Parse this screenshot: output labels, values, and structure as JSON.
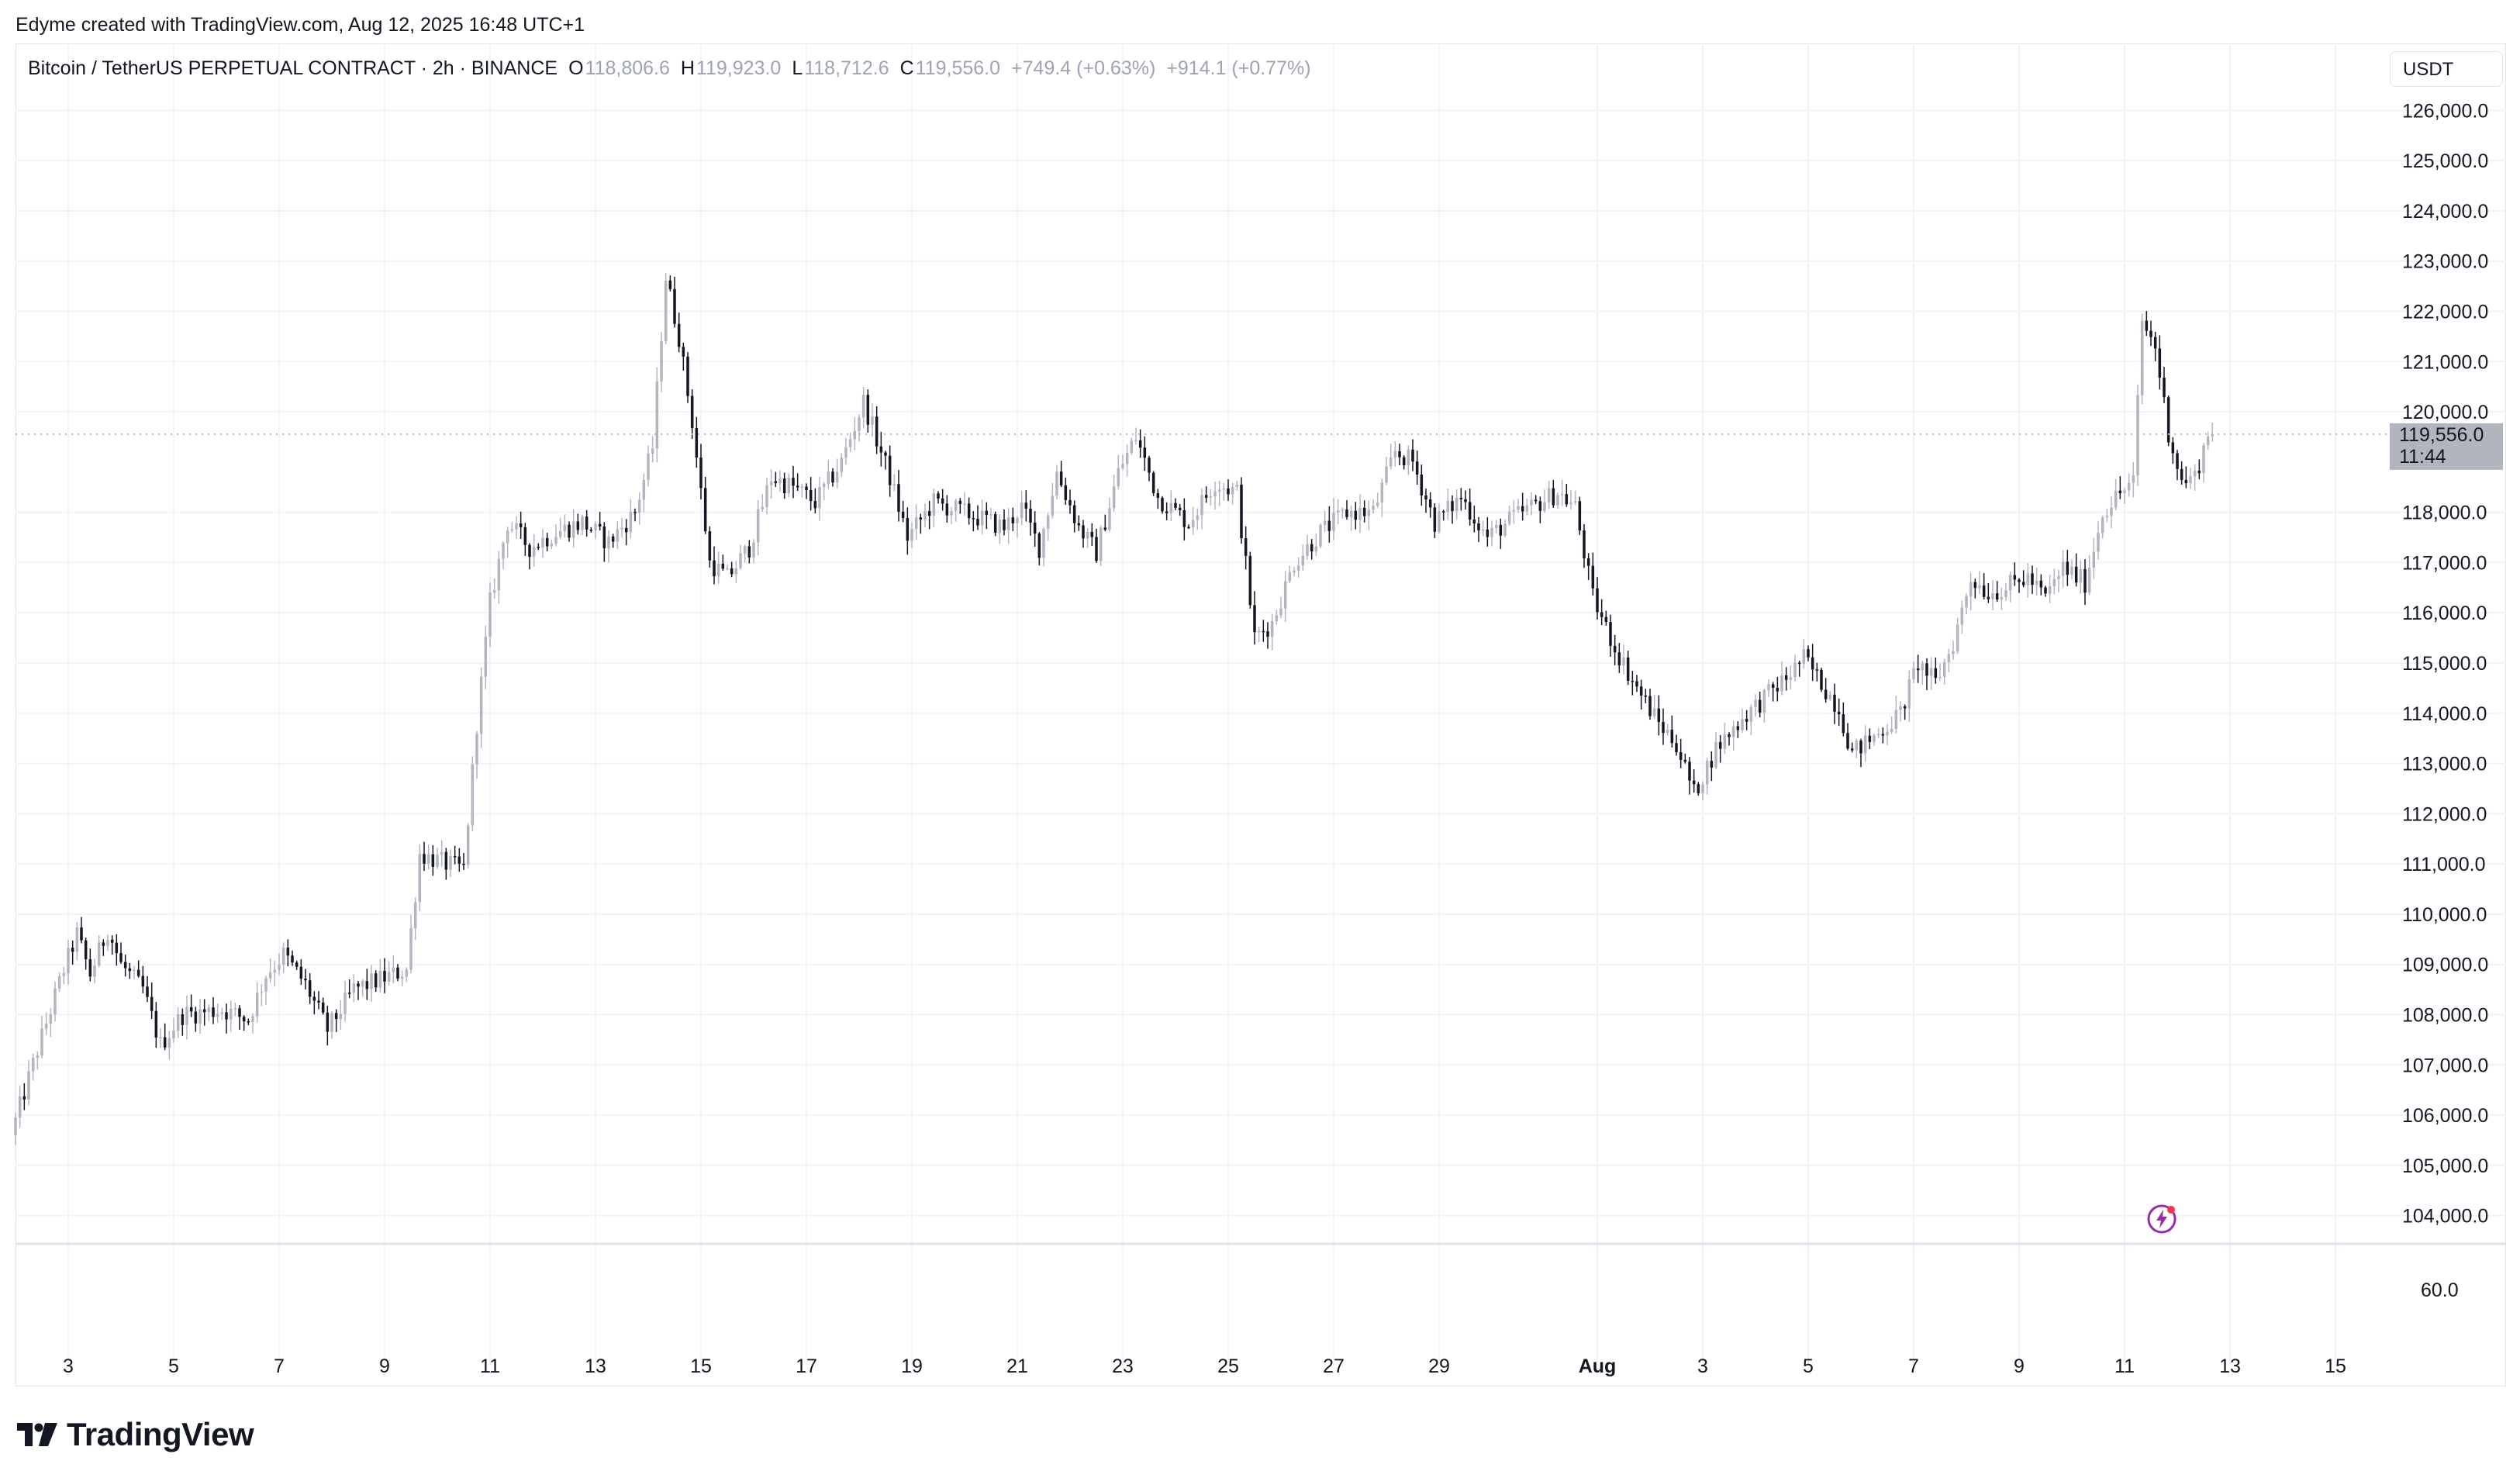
{
  "header": {
    "creator_text": "Edyme created with TradingView.com, Aug 12, 2025 16:48 UTC+1"
  },
  "legend": {
    "symbol": "Bitcoin / TetherUS PERPETUAL CONTRACT · 2h · BINANCE",
    "open_key": "O",
    "open": "118,806.6",
    "high_key": "H",
    "high": "119,923.0",
    "low_key": "L",
    "low": "118,712.6",
    "close_key": "C",
    "close": "119,556.0",
    "change": "+749.4 (+0.63%)",
    "change2": "+914.1 (+0.77%)"
  },
  "currency_button": "USDT",
  "price_tag": {
    "price": "119,556.0",
    "countdown": "11:44"
  },
  "logo_text": "TradingView",
  "colors": {
    "up": "#b2b5be",
    "down": "#131722",
    "grid": "#f0f3fa",
    "tag_bg": "#b2b5be",
    "bolt": "#9c27b0"
  },
  "icons": {
    "logo": "tradingview-logo-icon",
    "alert": "lightning-alert-icon"
  },
  "chart_data": {
    "type": "candlestick",
    "interval": "2h",
    "y_ticks": [
      "126,000.0",
      "125,000.0",
      "124,000.0",
      "123,000.0",
      "122,000.0",
      "121,000.0",
      "120,000.0",
      "118,000.0",
      "117,000.0",
      "116,000.0",
      "115,000.0",
      "114,000.0",
      "113,000.0",
      "112,000.0",
      "111,000.0",
      "110,000.0",
      "109,000.0",
      "108,000.0",
      "107,000.0",
      "106,000.0",
      "105,000.0",
      "104,000.0"
    ],
    "y_range": [
      103500,
      126500
    ],
    "lower_pane_tick": "60.0",
    "x_ticks": [
      "3",
      "5",
      "7",
      "9",
      "11",
      "13",
      "15",
      "17",
      "19",
      "21",
      "23",
      "25",
      "27",
      "29",
      "Aug",
      "3",
      "5",
      "7",
      "9",
      "11",
      "13",
      "15"
    ],
    "x_range": [
      "2025-07-02",
      "2025-08-16"
    ],
    "current_price": 119556,
    "anchors": [
      [
        "2025-07-02T00:00",
        105600
      ],
      [
        "2025-07-02T12:00",
        107300
      ],
      [
        "2025-07-03T00:00",
        108900
      ],
      [
        "2025-07-03T06:00",
        109600
      ],
      [
        "2025-07-03T12:00",
        108800
      ],
      [
        "2025-07-03T20:00",
        109700
      ],
      [
        "2025-07-04T02:00",
        109000
      ],
      [
        "2025-07-04T12:00",
        108500
      ],
      [
        "2025-07-04T20:00",
        107400
      ],
      [
        "2025-07-05T06:00",
        108000
      ],
      [
        "2025-07-06T00:00",
        108100
      ],
      [
        "2025-07-06T12:00",
        107900
      ],
      [
        "2025-07-06T20:00",
        108800
      ],
      [
        "2025-07-07T04:00",
        109200
      ],
      [
        "2025-07-07T14:00",
        108600
      ],
      [
        "2025-07-08T00:00",
        107700
      ],
      [
        "2025-07-08T12:00",
        108500
      ],
      [
        "2025-07-09T00:00",
        108700
      ],
      [
        "2025-07-09T12:00",
        108900
      ],
      [
        "2025-07-09T18:00",
        111200
      ],
      [
        "2025-07-10T06:00",
        111000
      ],
      [
        "2025-07-10T14:00",
        110900
      ],
      [
        "2025-07-10T20:00",
        113800
      ],
      [
        "2025-07-11T02:00",
        116200
      ],
      [
        "2025-07-11T10:00",
        117800
      ],
      [
        "2025-07-11T20:00",
        117300
      ],
      [
        "2025-07-12T08:00",
        117600
      ],
      [
        "2025-07-12T20:00",
        117800
      ],
      [
        "2025-07-13T08:00",
        117400
      ],
      [
        "2025-07-13T20:00",
        118000
      ],
      [
        "2025-07-14T04:00",
        119300
      ],
      [
        "2025-07-14T10:00",
        122700
      ],
      [
        "2025-07-14T16:00",
        121500
      ],
      [
        "2025-07-14T22:00",
        119800
      ],
      [
        "2025-07-15T06:00",
        117000
      ],
      [
        "2025-07-15T14:00",
        116700
      ],
      [
        "2025-07-16T00:00",
        117300
      ],
      [
        "2025-07-16T10:00",
        118700
      ],
      [
        "2025-07-16T20:00",
        118500
      ],
      [
        "2025-07-17T06:00",
        118200
      ],
      [
        "2025-07-17T18:00",
        119000
      ],
      [
        "2025-07-18T04:00",
        120200
      ],
      [
        "2025-07-18T16:00",
        118700
      ],
      [
        "2025-07-19T00:00",
        117500
      ],
      [
        "2025-07-19T12:00",
        118200
      ],
      [
        "2025-07-20T08:00",
        117900
      ],
      [
        "2025-07-20T20:00",
        117700
      ],
      [
        "2025-07-21T04:00",
        118100
      ],
      [
        "2025-07-21T12:00",
        117300
      ],
      [
        "2025-07-21T20:00",
        118800
      ],
      [
        "2025-07-22T06:00",
        117700
      ],
      [
        "2025-07-22T14:00",
        117200
      ],
      [
        "2025-07-23T00:00",
        118800
      ],
      [
        "2025-07-23T08:00",
        119500
      ],
      [
        "2025-07-23T18:00",
        118300
      ],
      [
        "2025-07-24T08:00",
        117800
      ],
      [
        "2025-07-24T20:00",
        118600
      ],
      [
        "2025-07-25T06:00",
        118400
      ],
      [
        "2025-07-25T14:00",
        115500
      ],
      [
        "2025-07-25T22:00",
        115800
      ],
      [
        "2025-07-26T08:00",
        117000
      ],
      [
        "2025-07-26T20:00",
        117600
      ],
      [
        "2025-07-27T08:00",
        118000
      ],
      [
        "2025-07-27T20:00",
        118000
      ],
      [
        "2025-07-28T06:00",
        119200
      ],
      [
        "2025-07-28T14:00",
        119000
      ],
      [
        "2025-07-29T00:00",
        117800
      ],
      [
        "2025-07-29T12:00",
        118300
      ],
      [
        "2025-07-30T00:00",
        117500
      ],
      [
        "2025-07-30T12:00",
        117900
      ],
      [
        "2025-07-31T00:00",
        118200
      ],
      [
        "2025-07-31T08:00",
        118400
      ],
      [
        "2025-07-31T16:00",
        118100
      ],
      [
        "2025-08-01T00:00",
        116300
      ],
      [
        "2025-08-01T10:00",
        115300
      ],
      [
        "2025-08-01T20:00",
        114500
      ],
      [
        "2025-08-02T06:00",
        113800
      ],
      [
        "2025-08-02T14:00",
        113400
      ],
      [
        "2025-08-02T22:00",
        112400
      ],
      [
        "2025-08-03T08:00",
        113300
      ],
      [
        "2025-08-03T20:00",
        113900
      ],
      [
        "2025-08-04T06:00",
        114300
      ],
      [
        "2025-08-04T16:00",
        114700
      ],
      [
        "2025-08-05T00:00",
        115100
      ],
      [
        "2025-08-05T08:00",
        114600
      ],
      [
        "2025-08-05T16:00",
        114100
      ],
      [
        "2025-08-05T22:00",
        113200
      ],
      [
        "2025-08-06T10:00",
        113600
      ],
      [
        "2025-08-06T20:00",
        114000
      ],
      [
        "2025-08-07T04:00",
        115000
      ],
      [
        "2025-08-07T12:00",
        114600
      ],
      [
        "2025-08-07T20:00",
        115400
      ],
      [
        "2025-08-08T04:00",
        116700
      ],
      [
        "2025-08-08T12:00",
        116400
      ],
      [
        "2025-08-08T20:00",
        116500
      ],
      [
        "2025-08-09T06:00",
        116700
      ],
      [
        "2025-08-09T14:00",
        116300
      ],
      [
        "2025-08-09T22:00",
        116900
      ],
      [
        "2025-08-10T08:00",
        116600
      ],
      [
        "2025-08-10T16:00",
        118000
      ],
      [
        "2025-08-10T22:00",
        118300
      ],
      [
        "2025-08-11T06:00",
        118600
      ],
      [
        "2025-08-11T10:00",
        121800
      ],
      [
        "2025-08-11T16:00",
        121300
      ],
      [
        "2025-08-11T22:00",
        119600
      ],
      [
        "2025-08-12T04:00",
        118600
      ],
      [
        "2025-08-12T10:00",
        118700
      ],
      [
        "2025-08-12T16:00",
        119556
      ]
    ]
  }
}
